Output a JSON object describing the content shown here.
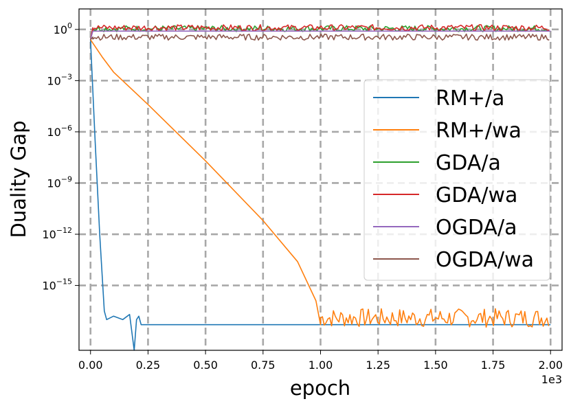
{
  "chart_data": {
    "type": "line",
    "title": "",
    "xlabel": "epoch",
    "ylabel": "Duality Gap",
    "x_offset_label": "1e3",
    "xlim": [
      -0.05,
      2.05
    ],
    "ylim_log10": [
      -18.8,
      1.2
    ],
    "y_scale": "log",
    "grid": true,
    "legend_position": "right",
    "x_ticks": [
      0.0,
      0.25,
      0.5,
      0.75,
      1.0,
      1.25,
      1.5,
      1.75,
      2.0
    ],
    "x_tick_labels": [
      "0.00",
      "0.25",
      "0.50",
      "0.75",
      "1.00",
      "1.25",
      "1.50",
      "1.75",
      "2.00"
    ],
    "y_ticks_exp": [
      0,
      -3,
      -6,
      -9,
      -12,
      -15
    ],
    "y_tick_labels": [
      {
        "base": "10",
        "exp": "0"
      },
      {
        "base": "10",
        "exp": "−3"
      },
      {
        "base": "10",
        "exp": "−6"
      },
      {
        "base": "10",
        "exp": "−9"
      },
      {
        "base": "10",
        "exp": "−12"
      },
      {
        "base": "10",
        "exp": "−15"
      }
    ],
    "series": [
      {
        "name": "RM+/a",
        "color": "#1f77b4",
        "points_log10": [
          [
            0.0,
            -0.6
          ],
          [
            0.02,
            -6.5
          ],
          [
            0.04,
            -12.0
          ],
          [
            0.06,
            -16.5
          ],
          [
            0.07,
            -17.0
          ],
          [
            0.1,
            -16.8
          ],
          [
            0.14,
            -17.0
          ],
          [
            0.17,
            -16.7
          ],
          [
            0.19,
            -18.8
          ],
          [
            0.2,
            -17.0
          ],
          [
            0.21,
            -16.8
          ],
          [
            0.22,
            -17.3
          ],
          [
            2.0,
            -17.3
          ]
        ]
      },
      {
        "name": "RM+/wa",
        "color": "#ff7f0e",
        "points_log10": [
          [
            0.0,
            -0.6
          ],
          [
            0.05,
            -1.6
          ],
          [
            0.1,
            -2.5
          ],
          [
            0.25,
            -4.4
          ],
          [
            0.5,
            -7.7
          ],
          [
            0.75,
            -11.2
          ],
          [
            0.9,
            -13.6
          ],
          [
            0.98,
            -15.9
          ],
          [
            1.0,
            -17.3
          ],
          [
            1.02,
            -17.0
          ],
          [
            1.25,
            -16.9
          ],
          [
            1.5,
            -16.9
          ],
          [
            1.75,
            -16.9
          ],
          [
            2.0,
            -16.9
          ]
        ],
        "noise_after": 1.0
      },
      {
        "name": "GDA/a",
        "color": "#2ca02c",
        "points_log10": [
          [
            0.0,
            -0.6
          ],
          [
            0.01,
            0.05
          ],
          [
            2.0,
            0.05
          ]
        ],
        "noise_after": 0.01
      },
      {
        "name": "GDA/wa",
        "color": "#d62728",
        "points_log10": [
          [
            0.0,
            -0.6
          ],
          [
            0.01,
            0.1
          ],
          [
            2.0,
            0.1
          ]
        ],
        "noise_after": 0.01
      },
      {
        "name": "OGDA/a",
        "color": "#9467bd",
        "points_log10": [
          [
            0.0,
            -0.6
          ],
          [
            0.01,
            -0.1
          ],
          [
            2.0,
            -0.1
          ]
        ]
      },
      {
        "name": "OGDA/wa",
        "color": "#8c564b",
        "points_log10": [
          [
            0.0,
            -0.6
          ],
          [
            0.01,
            -0.45
          ],
          [
            2.0,
            -0.45
          ]
        ],
        "noise_after": 0.01
      }
    ]
  }
}
